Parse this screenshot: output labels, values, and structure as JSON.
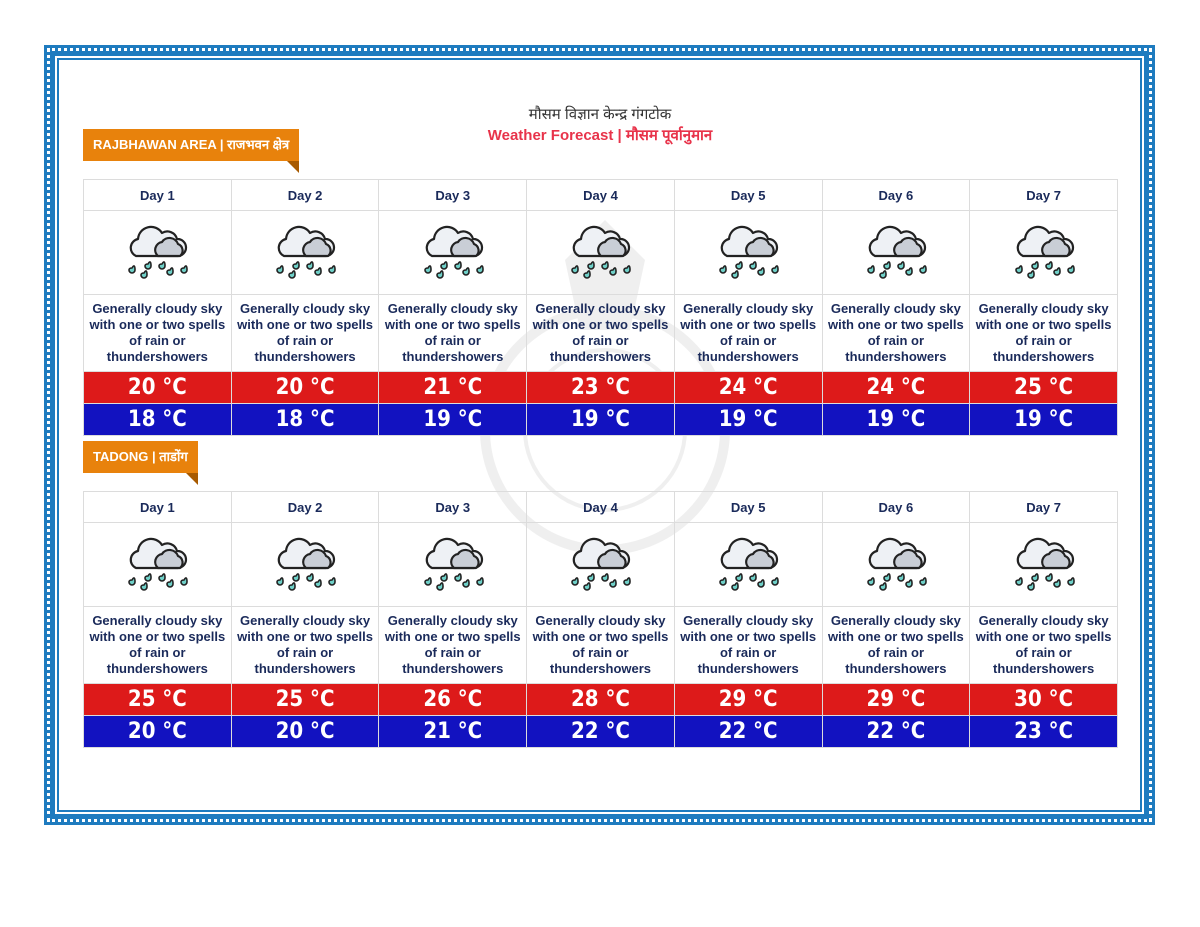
{
  "header": {
    "line1": "मौसम विज्ञान केन्द्र गंगटोक",
    "line2": "Weather Forecast | मौसम पूर्वानुमान"
  },
  "colors": {
    "accent": "#e8334a",
    "tag": "#e8820c",
    "max": "#dd1a1a",
    "min": "#1212c0",
    "border": "#1e7bbf"
  },
  "sections": [
    {
      "tag": "RAJBHAWAN AREA | राजभवन क्षेत्र",
      "days": [
        {
          "label": "Day 1",
          "icon": "cloud-rain-icon",
          "desc": "Generally cloudy sky with one or two spells of rain or thundershowers",
          "max": "20 °C",
          "min": "18 °C"
        },
        {
          "label": "Day 2",
          "icon": "cloud-rain-icon",
          "desc": "Generally cloudy sky with one or two spells of rain or thundershowers",
          "max": "20 °C",
          "min": "18 °C"
        },
        {
          "label": "Day 3",
          "icon": "cloud-rain-icon",
          "desc": "Generally cloudy sky with one or two spells of rain or thundershowers",
          "max": "21 °C",
          "min": "19 °C"
        },
        {
          "label": "Day 4",
          "icon": "cloud-rain-icon",
          "desc": "Generally cloudy sky with one or two spells of rain or thundershowers",
          "max": "23 °C",
          "min": "19 °C"
        },
        {
          "label": "Day 5",
          "icon": "cloud-rain-icon",
          "desc": "Generally cloudy sky with one or two spells of rain or thundershowers",
          "max": "24 °C",
          "min": "19 °C"
        },
        {
          "label": "Day 6",
          "icon": "cloud-rain-icon",
          "desc": "Generally cloudy sky with one or two spells of rain or thundershowers",
          "max": "24 °C",
          "min": "19 °C"
        },
        {
          "label": "Day 7",
          "icon": "cloud-rain-icon",
          "desc": "Generally cloudy sky with one or two spells of rain or thundershowers",
          "max": "25 °C",
          "min": "19 °C"
        }
      ]
    },
    {
      "tag": "TADONG | ताडोंग",
      "days": [
        {
          "label": "Day 1",
          "icon": "cloud-rain-icon",
          "desc": "Generally cloudy sky with one or two spells of rain or thundershowers",
          "max": "25 °C",
          "min": "20 °C"
        },
        {
          "label": "Day 2",
          "icon": "cloud-rain-icon",
          "desc": "Generally cloudy sky with one or two spells of rain or thundershowers",
          "max": "25 °C",
          "min": "20 °C"
        },
        {
          "label": "Day 3",
          "icon": "cloud-rain-icon",
          "desc": "Generally cloudy sky with one or two spells of rain or thundershowers",
          "max": "26 °C",
          "min": "21 °C"
        },
        {
          "label": "Day 4",
          "icon": "cloud-rain-icon",
          "desc": "Generally cloudy sky with one or two spells of rain or thundershowers",
          "max": "28 °C",
          "min": "22 °C"
        },
        {
          "label": "Day 5",
          "icon": "cloud-rain-icon",
          "desc": "Generally cloudy sky with one or two spells of rain or thundershowers",
          "max": "29 °C",
          "min": "22 °C"
        },
        {
          "label": "Day 6",
          "icon": "cloud-rain-icon",
          "desc": "Generally cloudy sky with one or two spells of rain or thundershowers",
          "max": "29 °C",
          "min": "22 °C"
        },
        {
          "label": "Day 7",
          "icon": "cloud-rain-icon",
          "desc": "Generally cloudy sky with one or two spells of rain or thundershowers",
          "max": "30 °C",
          "min": "23 °C"
        }
      ]
    }
  ]
}
